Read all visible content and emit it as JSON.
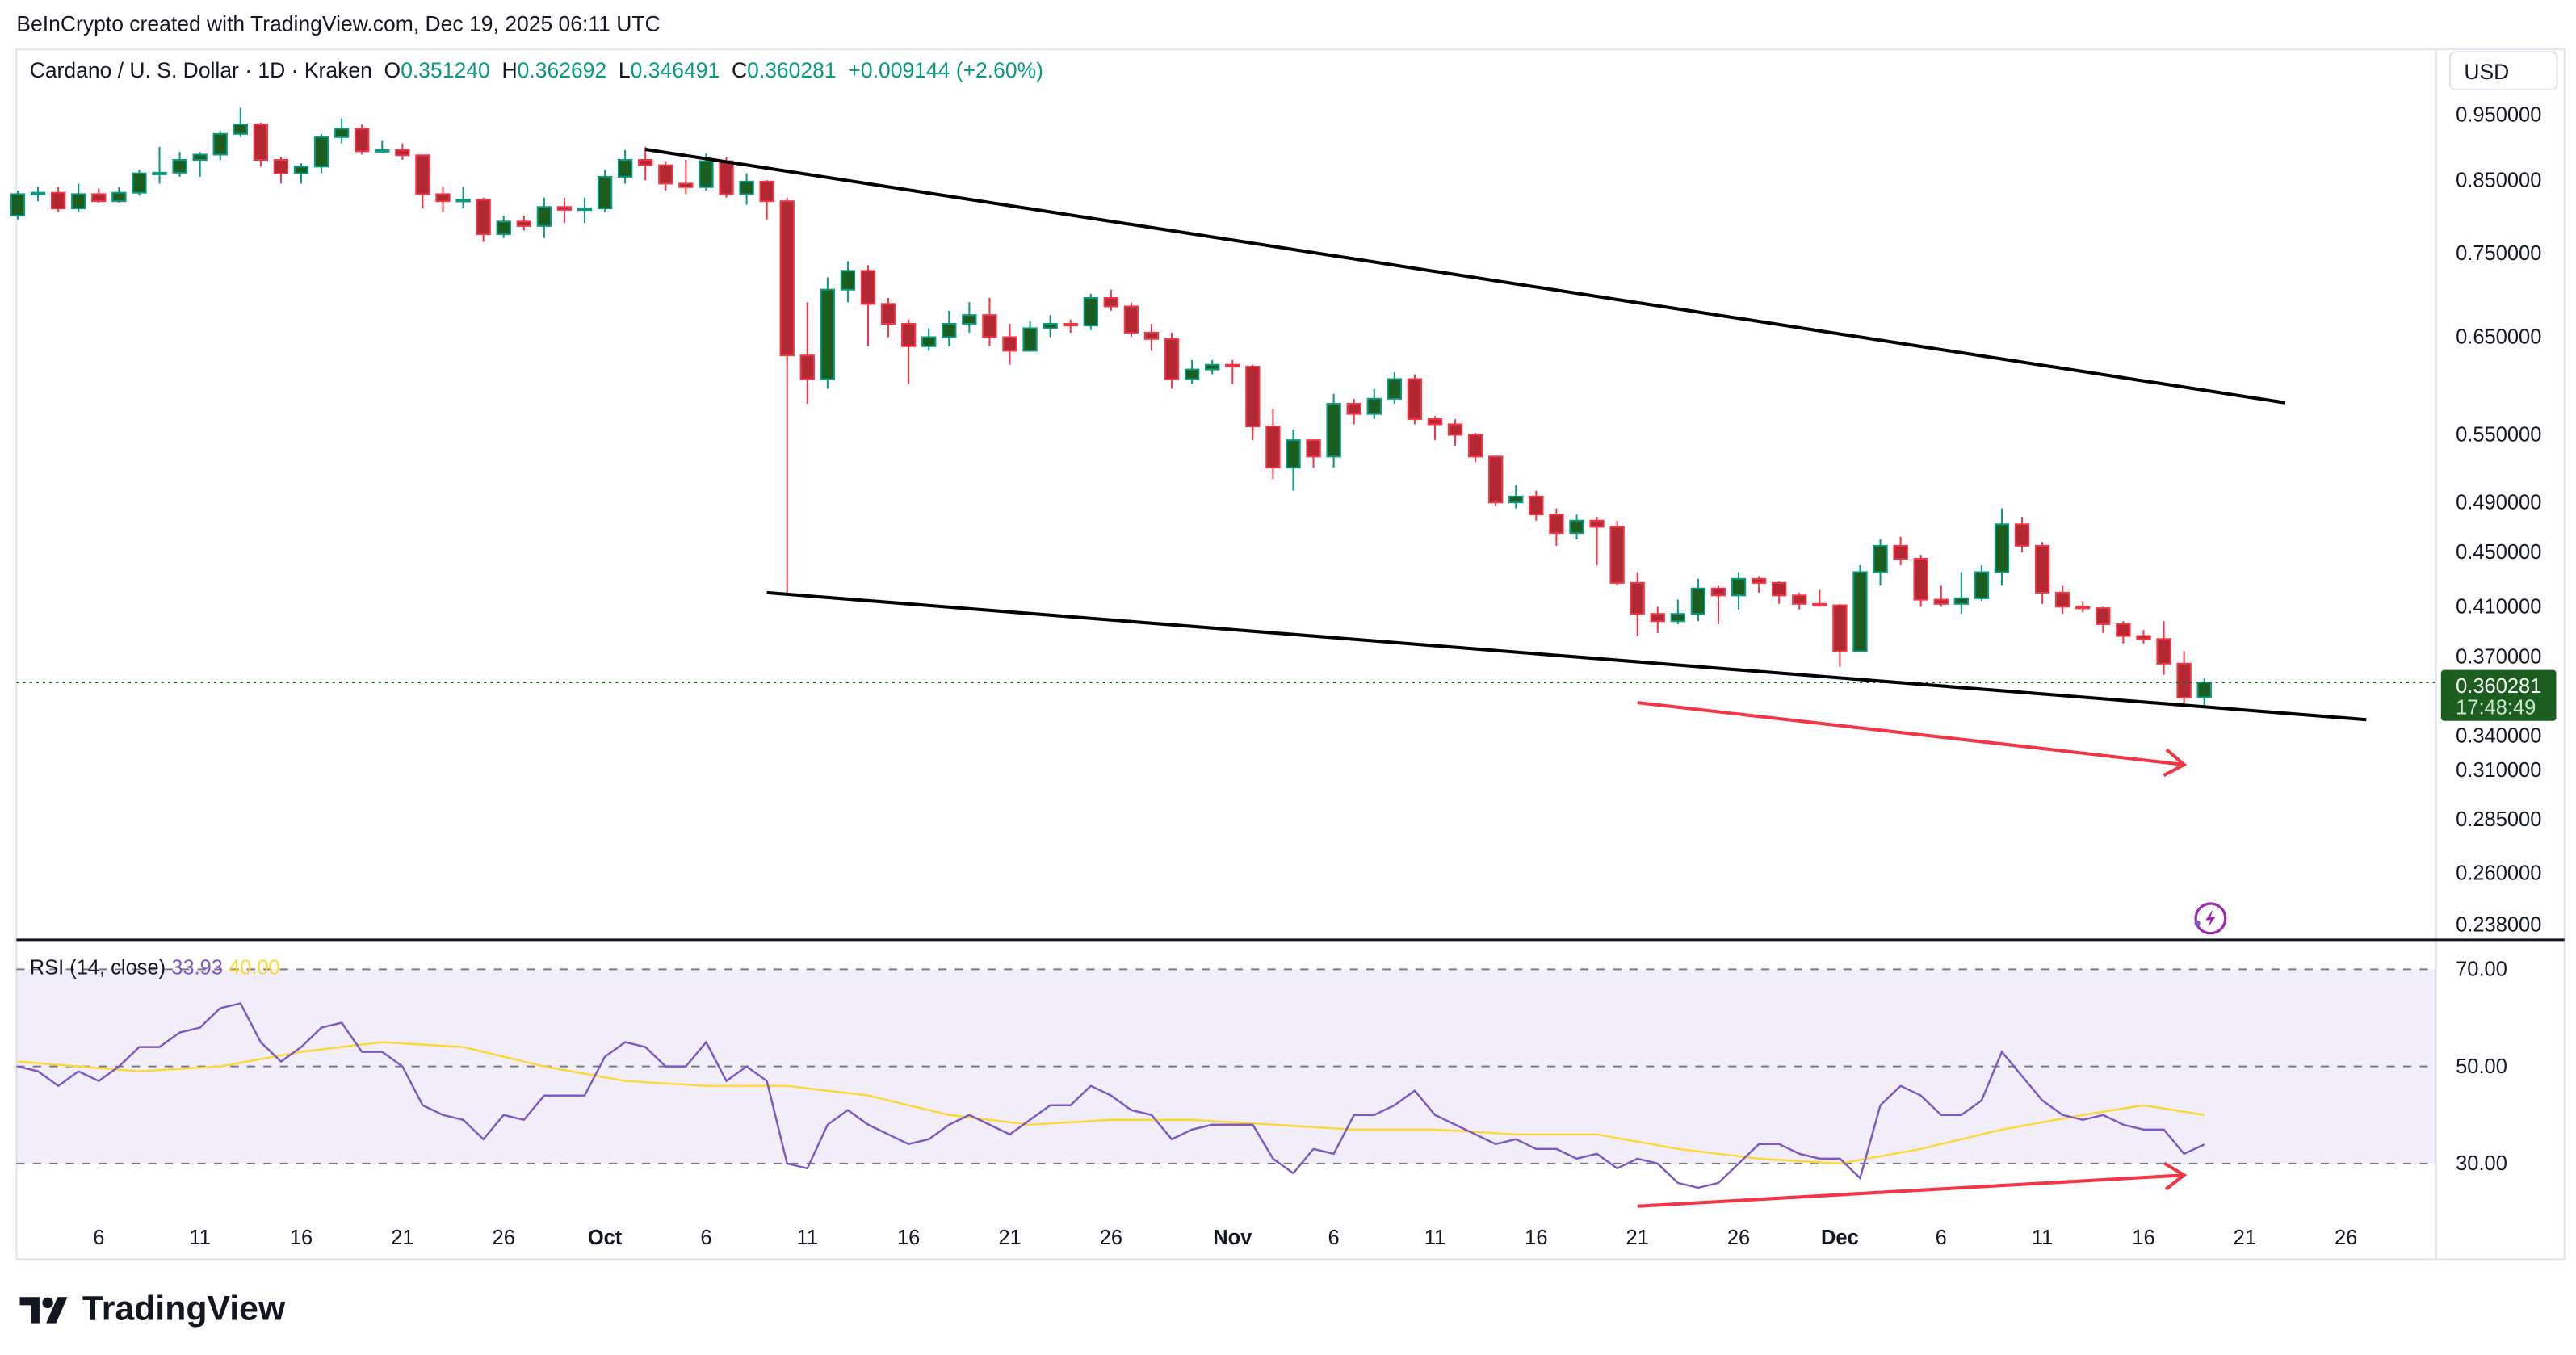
{
  "header": {
    "caption": "BeInCrypto created with TradingView.com, Dec 19, 2025 06:11 UTC",
    "symbol": "Cardano / U. S. Dollar · 1D · Kraken",
    "o_label": "O",
    "o": "0.351240",
    "h_label": "H",
    "h": "0.362692",
    "l_label": "L",
    "l": "0.346491",
    "c_label": "C",
    "c": "0.360281",
    "change": "+0.009144 (+2.60%)"
  },
  "currency": "USD",
  "price_tag": {
    "price": "0.360281",
    "countdown": "17:48:49"
  },
  "rsi_legend": {
    "name": "RSI (14, close)",
    "rsi": "33.93",
    "ma": "40.00"
  },
  "footer": {
    "brand": "TradingView"
  },
  "colors": {
    "up_body": "#1b5e20",
    "up_border": "#089981",
    "down_body": "#b22833",
    "down_border": "#f23645",
    "rsi": "#7e57c2",
    "rsi_ma": "#fdd835",
    "trendline": "#000000",
    "arrow": "#f23645",
    "price_tag": "#1b5e20"
  },
  "icons": {
    "alert": "lightning-bolt-icon",
    "logo": "tradingview-logo-icon"
  },
  "chart_data": {
    "type": "candlestick",
    "price_scale": "log",
    "x_range": [
      "2025-09-01",
      "2025-12-30"
    ],
    "ylim": [
      0.232,
      1.063
    ],
    "price_ticks": [
      "0.950000",
      "0.850000",
      "0.750000",
      "0.650000",
      "0.550000",
      "0.490000",
      "0.450000",
      "0.410000",
      "0.370000",
      "0.340000",
      "0.310000",
      "0.285000",
      "0.260000",
      "0.238000"
    ],
    "x_ticks": [
      {
        "date": "2025-09-06",
        "label": "6"
      },
      {
        "date": "2025-09-11",
        "label": "11"
      },
      {
        "date": "2025-09-16",
        "label": "16"
      },
      {
        "date": "2025-09-21",
        "label": "21"
      },
      {
        "date": "2025-09-26",
        "label": "26"
      },
      {
        "date": "2025-10-01",
        "label": "Oct"
      },
      {
        "date": "2025-10-06",
        "label": "6"
      },
      {
        "date": "2025-10-11",
        "label": "11"
      },
      {
        "date": "2025-10-16",
        "label": "16"
      },
      {
        "date": "2025-10-21",
        "label": "21"
      },
      {
        "date": "2025-10-26",
        "label": "26"
      },
      {
        "date": "2025-11-01",
        "label": "Nov"
      },
      {
        "date": "2025-11-06",
        "label": "6"
      },
      {
        "date": "2025-11-11",
        "label": "11"
      },
      {
        "date": "2025-11-16",
        "label": "16"
      },
      {
        "date": "2025-11-21",
        "label": "21"
      },
      {
        "date": "2025-11-26",
        "label": "26"
      },
      {
        "date": "2025-12-01",
        "label": "Dec"
      },
      {
        "date": "2025-12-06",
        "label": "6"
      },
      {
        "date": "2025-12-11",
        "label": "11"
      },
      {
        "date": "2025-12-16",
        "label": "16"
      },
      {
        "date": "2025-12-21",
        "label": "21"
      },
      {
        "date": "2025-12-26",
        "label": "26"
      }
    ],
    "candles_columns": [
      "date",
      "open",
      "high",
      "low",
      "close"
    ],
    "candles": [
      [
        "2025-09-02",
        0.8,
        0.835,
        0.795,
        0.83
      ],
      [
        "2025-09-03",
        0.83,
        0.84,
        0.82,
        0.832
      ],
      [
        "2025-09-04",
        0.832,
        0.84,
        0.805,
        0.81
      ],
      [
        "2025-09-05",
        0.81,
        0.845,
        0.805,
        0.83
      ],
      [
        "2025-09-06",
        0.83,
        0.838,
        0.818,
        0.82
      ],
      [
        "2025-09-07",
        0.82,
        0.84,
        0.818,
        0.832
      ],
      [
        "2025-09-08",
        0.832,
        0.865,
        0.828,
        0.86
      ],
      [
        "2025-09-09",
        0.86,
        0.9,
        0.845,
        0.861
      ],
      [
        "2025-09-10",
        0.861,
        0.892,
        0.855,
        0.88
      ],
      [
        "2025-09-11",
        0.88,
        0.892,
        0.855,
        0.888
      ],
      [
        "2025-09-12",
        0.888,
        0.925,
        0.88,
        0.92
      ],
      [
        "2025-09-13",
        0.92,
        0.962,
        0.915,
        0.935
      ],
      [
        "2025-09-14",
        0.935,
        0.938,
        0.87,
        0.88
      ],
      [
        "2025-09-15",
        0.88,
        0.885,
        0.845,
        0.86
      ],
      [
        "2025-09-16",
        0.86,
        0.875,
        0.845,
        0.87
      ],
      [
        "2025-09-17",
        0.87,
        0.92,
        0.86,
        0.915
      ],
      [
        "2025-09-18",
        0.915,
        0.945,
        0.905,
        0.928
      ],
      [
        "2025-09-19",
        0.928,
        0.935,
        0.888,
        0.893
      ],
      [
        "2025-09-20",
        0.893,
        0.91,
        0.89,
        0.895
      ],
      [
        "2025-09-21",
        0.895,
        0.905,
        0.88,
        0.887
      ],
      [
        "2025-09-22",
        0.887,
        0.888,
        0.81,
        0.83
      ],
      [
        "2025-09-23",
        0.83,
        0.84,
        0.805,
        0.82
      ],
      [
        "2025-09-24",
        0.82,
        0.84,
        0.81,
        0.822
      ],
      [
        "2025-09-25",
        0.822,
        0.825,
        0.765,
        0.775
      ],
      [
        "2025-09-26",
        0.775,
        0.8,
        0.77,
        0.792
      ],
      [
        "2025-09-27",
        0.792,
        0.8,
        0.78,
        0.786
      ],
      [
        "2025-09-28",
        0.786,
        0.825,
        0.77,
        0.812
      ],
      [
        "2025-09-29",
        0.812,
        0.825,
        0.79,
        0.808
      ],
      [
        "2025-09-30",
        0.808,
        0.825,
        0.79,
        0.81
      ],
      [
        "2025-10-01",
        0.81,
        0.865,
        0.805,
        0.855
      ],
      [
        "2025-10-02",
        0.855,
        0.895,
        0.845,
        0.88
      ],
      [
        "2025-10-03",
        0.88,
        0.9,
        0.85,
        0.872
      ],
      [
        "2025-10-04",
        0.872,
        0.878,
        0.835,
        0.845
      ],
      [
        "2025-10-05",
        0.845,
        0.88,
        0.83,
        0.84
      ],
      [
        "2025-10-06",
        0.84,
        0.89,
        0.835,
        0.878
      ],
      [
        "2025-10-07",
        0.878,
        0.885,
        0.825,
        0.83
      ],
      [
        "2025-10-08",
        0.83,
        0.86,
        0.815,
        0.848
      ],
      [
        "2025-10-09",
        0.848,
        0.85,
        0.795,
        0.82
      ],
      [
        "2025-10-10",
        0.82,
        0.825,
        0.42,
        0.63
      ],
      [
        "2025-10-11",
        0.63,
        0.69,
        0.58,
        0.605
      ],
      [
        "2025-10-12",
        0.605,
        0.72,
        0.595,
        0.705
      ],
      [
        "2025-10-13",
        0.705,
        0.74,
        0.69,
        0.728
      ],
      [
        "2025-10-14",
        0.728,
        0.735,
        0.64,
        0.688
      ],
      [
        "2025-10-15",
        0.688,
        0.695,
        0.65,
        0.665
      ],
      [
        "2025-10-16",
        0.665,
        0.67,
        0.6,
        0.64
      ],
      [
        "2025-10-17",
        0.64,
        0.66,
        0.635,
        0.65
      ],
      [
        "2025-10-18",
        0.65,
        0.68,
        0.64,
        0.665
      ],
      [
        "2025-10-19",
        0.665,
        0.69,
        0.655,
        0.675
      ],
      [
        "2025-10-20",
        0.675,
        0.695,
        0.64,
        0.65
      ],
      [
        "2025-10-21",
        0.65,
        0.665,
        0.62,
        0.635
      ],
      [
        "2025-10-22",
        0.635,
        0.668,
        0.635,
        0.66
      ],
      [
        "2025-10-23",
        0.66,
        0.675,
        0.65,
        0.665
      ],
      [
        "2025-10-24",
        0.665,
        0.67,
        0.655,
        0.663
      ],
      [
        "2025-10-25",
        0.663,
        0.7,
        0.658,
        0.695
      ],
      [
        "2025-10-26",
        0.695,
        0.705,
        0.68,
        0.685
      ],
      [
        "2025-10-27",
        0.685,
        0.69,
        0.65,
        0.655
      ],
      [
        "2025-10-28",
        0.655,
        0.665,
        0.635,
        0.648
      ],
      [
        "2025-10-29",
        0.648,
        0.655,
        0.595,
        0.605
      ],
      [
        "2025-10-30",
        0.605,
        0.625,
        0.6,
        0.615
      ],
      [
        "2025-10-31",
        0.615,
        0.625,
        0.61,
        0.62
      ],
      [
        "2025-11-01",
        0.62,
        0.625,
        0.6,
        0.618
      ],
      [
        "2025-11-02",
        0.618,
        0.62,
        0.545,
        0.558
      ],
      [
        "2025-11-03",
        0.558,
        0.575,
        0.51,
        0.52
      ],
      [
        "2025-11-04",
        0.52,
        0.555,
        0.5,
        0.545
      ],
      [
        "2025-11-05",
        0.545,
        0.545,
        0.52,
        0.53
      ],
      [
        "2025-11-06",
        0.53,
        0.59,
        0.52,
        0.58
      ],
      [
        "2025-11-07",
        0.58,
        0.585,
        0.56,
        0.57
      ],
      [
        "2025-11-08",
        0.57,
        0.595,
        0.565,
        0.585
      ],
      [
        "2025-11-09",
        0.585,
        0.612,
        0.58,
        0.605
      ],
      [
        "2025-11-10",
        0.605,
        0.61,
        0.56,
        0.565
      ],
      [
        "2025-11-11",
        0.565,
        0.568,
        0.545,
        0.56
      ],
      [
        "2025-11-12",
        0.56,
        0.565,
        0.54,
        0.55
      ],
      [
        "2025-11-13",
        0.55,
        0.552,
        0.525,
        0.53
      ],
      [
        "2025-11-14",
        0.53,
        0.53,
        0.487,
        0.49
      ],
      [
        "2025-11-15",
        0.49,
        0.505,
        0.485,
        0.495
      ],
      [
        "2025-11-16",
        0.495,
        0.5,
        0.475,
        0.48
      ],
      [
        "2025-11-17",
        0.48,
        0.485,
        0.455,
        0.465
      ],
      [
        "2025-11-18",
        0.465,
        0.48,
        0.46,
        0.475
      ],
      [
        "2025-11-19",
        0.475,
        0.478,
        0.44,
        0.47
      ],
      [
        "2025-11-20",
        0.47,
        0.475,
        0.425,
        0.427
      ],
      [
        "2025-11-21",
        0.427,
        0.435,
        0.39,
        0.405
      ],
      [
        "2025-11-22",
        0.405,
        0.41,
        0.392,
        0.4
      ],
      [
        "2025-11-23",
        0.4,
        0.415,
        0.398,
        0.405
      ],
      [
        "2025-11-24",
        0.405,
        0.43,
        0.4,
        0.423
      ],
      [
        "2025-11-25",
        0.423,
        0.425,
        0.398,
        0.418
      ],
      [
        "2025-11-26",
        0.418,
        0.435,
        0.408,
        0.43
      ],
      [
        "2025-11-27",
        0.43,
        0.432,
        0.42,
        0.427
      ],
      [
        "2025-11-28",
        0.427,
        0.428,
        0.412,
        0.418
      ],
      [
        "2025-11-29",
        0.418,
        0.42,
        0.408,
        0.412
      ],
      [
        "2025-11-30",
        0.412,
        0.422,
        0.41,
        0.411
      ],
      [
        "2025-12-01",
        0.411,
        0.412,
        0.37,
        0.38
      ],
      [
        "2025-12-02",
        0.38,
        0.44,
        0.38,
        0.435
      ],
      [
        "2025-12-03",
        0.435,
        0.46,
        0.425,
        0.455
      ],
      [
        "2025-12-04",
        0.455,
        0.462,
        0.44,
        0.445
      ],
      [
        "2025-12-05",
        0.445,
        0.448,
        0.41,
        0.415
      ],
      [
        "2025-12-06",
        0.415,
        0.425,
        0.41,
        0.412
      ],
      [
        "2025-12-07",
        0.412,
        0.435,
        0.405,
        0.416
      ],
      [
        "2025-12-08",
        0.416,
        0.44,
        0.414,
        0.435
      ],
      [
        "2025-12-09",
        0.435,
        0.485,
        0.425,
        0.472
      ],
      [
        "2025-12-10",
        0.472,
        0.478,
        0.45,
        0.455
      ],
      [
        "2025-12-11",
        0.455,
        0.458,
        0.412,
        0.42
      ],
      [
        "2025-12-12",
        0.42,
        0.425,
        0.405,
        0.41
      ],
      [
        "2025-12-13",
        0.41,
        0.414,
        0.406,
        0.409
      ],
      [
        "2025-12-14",
        0.409,
        0.41,
        0.392,
        0.398
      ],
      [
        "2025-12-15",
        0.398,
        0.4,
        0.385,
        0.39
      ],
      [
        "2025-12-16",
        0.39,
        0.394,
        0.385,
        0.388
      ],
      [
        "2025-12-17",
        0.388,
        0.4,
        0.365,
        0.372
      ],
      [
        "2025-12-18",
        0.372,
        0.38,
        0.347,
        0.351
      ],
      [
        "2025-12-19",
        0.35124,
        0.362692,
        0.346491,
        0.360281
      ]
    ],
    "last_price": 0.360281,
    "trendlines": [
      {
        "from": [
          "2025-10-03",
          0.896
        ],
        "to": [
          "2025-12-23",
          0.581
        ]
      },
      {
        "from": [
          "2025-10-09",
          0.42
        ],
        "to": [
          "2025-12-27",
          0.338
        ]
      }
    ],
    "price_arrow": {
      "from": [
        "2025-11-21",
        0.348
      ],
      "to": [
        "2025-12-18",
        0.313
      ]
    },
    "rsi": {
      "ylim": [
        10.3,
        75.4
      ],
      "levels": [
        "70.00",
        "50.00",
        "30.00"
      ],
      "start_date": "2025-09-02",
      "values": [
        50,
        49,
        46,
        49,
        47,
        50,
        54,
        54,
        57,
        58,
        62,
        63,
        55,
        51,
        54,
        58,
        59,
        53,
        53,
        50,
        42,
        40,
        39,
        35,
        40,
        39,
        44,
        44,
        44,
        52,
        55,
        54,
        50,
        50,
        55,
        47,
        50,
        47,
        30,
        29,
        38,
        41,
        38,
        36,
        34,
        35,
        38,
        40,
        38,
        36,
        39,
        42,
        42,
        46,
        44,
        41,
        40,
        35,
        37,
        38,
        38,
        38,
        31,
        28,
        33,
        32,
        40,
        40,
        42,
        45,
        40,
        38,
        36,
        34,
        35,
        33,
        33,
        31,
        32,
        29,
        31,
        30,
        26,
        25,
        26,
        30,
        34,
        34,
        32,
        31,
        31,
        27,
        42,
        46,
        44,
        40,
        40,
        43,
        53,
        48,
        43,
        40,
        39,
        40,
        38,
        37,
        37,
        32,
        33.93
      ],
      "ma_points": [
        [
          "2025-09-02",
          51
        ],
        [
          "2025-09-08",
          49
        ],
        [
          "2025-09-12",
          50
        ],
        [
          "2025-09-16",
          53
        ],
        [
          "2025-09-20",
          55
        ],
        [
          "2025-09-24",
          54
        ],
        [
          "2025-09-28",
          50
        ],
        [
          "2025-10-02",
          47
        ],
        [
          "2025-10-06",
          46
        ],
        [
          "2025-10-10",
          46
        ],
        [
          "2025-10-14",
          44
        ],
        [
          "2025-10-18",
          40
        ],
        [
          "2025-10-22",
          38
        ],
        [
          "2025-10-26",
          39
        ],
        [
          "2025-10-30",
          39
        ],
        [
          "2025-11-03",
          38
        ],
        [
          "2025-11-07",
          37
        ],
        [
          "2025-11-11",
          37
        ],
        [
          "2025-11-15",
          36
        ],
        [
          "2025-11-19",
          36
        ],
        [
          "2025-11-23",
          33
        ],
        [
          "2025-11-27",
          31
        ],
        [
          "2025-12-01",
          30
        ],
        [
          "2025-12-05",
          33
        ],
        [
          "2025-12-09",
          37
        ],
        [
          "2025-12-13",
          40
        ],
        [
          "2025-12-16",
          42
        ],
        [
          "2025-12-19",
          40
        ]
      ],
      "arrow": {
        "from": [
          "2025-11-21",
          21.2
        ],
        "to": [
          "2025-12-18",
          27.6
        ]
      }
    }
  }
}
